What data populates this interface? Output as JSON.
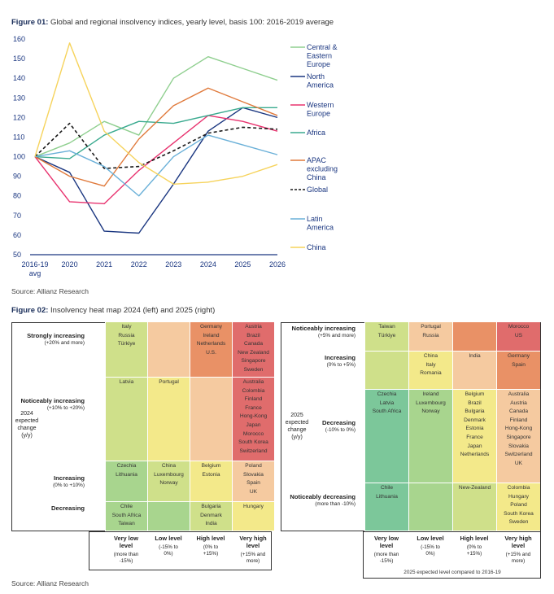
{
  "figure1": {
    "title_bold": "Figure 01:",
    "title_rest": " Global and regional insolvency indices, yearly level, basis 100: 2016-2019 average",
    "source": "Source: Allianz Research"
  },
  "chart_data": [
    {
      "type": "line",
      "categories": [
        "2016-19 avg",
        "2020",
        "2021",
        "2022",
        "2023",
        "2024",
        "2025",
        "2026"
      ],
      "ylim": [
        50,
        160
      ],
      "yticks": [
        50,
        60,
        70,
        80,
        90,
        100,
        110,
        120,
        130,
        140,
        150,
        160
      ],
      "grid": false,
      "legend_position": "right",
      "series": [
        {
          "name": "Central & Eastern Europe",
          "color": "#8fcf8f",
          "dash": "solid",
          "values": [
            100,
            107,
            118,
            111,
            140,
            151,
            145,
            139
          ]
        },
        {
          "name": "North America",
          "color": "#1a3680",
          "dash": "solid",
          "values": [
            100,
            92,
            62,
            61,
            86,
            113,
            125,
            120
          ]
        },
        {
          "name": "Western Europe",
          "color": "#e8336f",
          "dash": "solid",
          "values": [
            100,
            77,
            76,
            93,
            107,
            121,
            118,
            113
          ]
        },
        {
          "name": "Africa",
          "color": "#3aaa8f",
          "dash": "solid",
          "values": [
            100,
            99,
            111,
            118,
            117,
            121,
            125,
            125
          ]
        },
        {
          "name": "APAC excluding China",
          "color": "#e07a3c",
          "dash": "solid",
          "values": [
            100,
            90,
            85,
            109,
            126,
            135,
            128,
            121
          ]
        },
        {
          "name": "Global",
          "color": "#1a1a1a",
          "dash": "dashed",
          "values": [
            100,
            117,
            94,
            95,
            103,
            112,
            115,
            114
          ]
        },
        {
          "name": "Latin America",
          "color": "#6ab0d8",
          "dash": "solid",
          "values": [
            100,
            103,
            95,
            80,
            100,
            111,
            106,
            101
          ]
        },
        {
          "name": "China",
          "color": "#f6d35c",
          "dash": "solid",
          "values": [
            100,
            158,
            113,
            97,
            86,
            87,
            90,
            96
          ]
        }
      ]
    },
    {
      "type": "heatmap",
      "title": "2024 expected change (y/y)",
      "rows": [
        {
          "label": "Strongly increasing",
          "range": "(+20% and more)",
          "cells": [
            [
              "Italy",
              "Russia",
              "Türkiye"
            ],
            [],
            [
              "Germany",
              "Ireland",
              "Netherlands",
              "U.S."
            ],
            [
              "Austria",
              "Brazil",
              "Canada",
              "New Zealand",
              "Singapore",
              "Sweden"
            ]
          ]
        },
        {
          "label": "Noticeably increasing",
          "range": "(+10% to +20%)",
          "cells": [
            [
              "Latvia"
            ],
            [
              "Portugal"
            ],
            [],
            [
              "Australia",
              "Colombia",
              "Finland",
              "France",
              "Hong-Kong",
              "Japan",
              "Morocco",
              "South Korea",
              "Switzerland"
            ]
          ]
        },
        {
          "label": "Increasing",
          "range": "(0% to +10%)",
          "cells": [
            [
              "Czechia",
              "Lithuania"
            ],
            [
              "China",
              "Luxembourg",
              "Norway"
            ],
            [
              "Belgium",
              "Estonia"
            ],
            [
              "Poland",
              "Slovakia",
              "Spain",
              "UK"
            ]
          ]
        },
        {
          "label": "Decreasing",
          "range": "",
          "cells": [
            [
              "Chile",
              "South Africa",
              "Taiwan"
            ],
            [],
            [
              "Bulgaria",
              "Denmark",
              "India"
            ],
            [
              "Hungary"
            ]
          ]
        }
      ],
      "columns": [
        {
          "label": "Very low level",
          "range": "(more than -15%)"
        },
        {
          "label": "Low level",
          "range": "(-15% to 0%)"
        },
        {
          "label": "High level",
          "range": "(0% to +15%)"
        },
        {
          "label": "Very high level",
          "range": "(+15% and more)"
        }
      ],
      "side_label": "2024 expected change (y/y)"
    },
    {
      "type": "heatmap",
      "title": "2025 expected change (y/y)",
      "rows": [
        {
          "label": "Noticeably increasing",
          "range": "(+5% and more)",
          "cells": [
            [
              "Taiwan",
              "Türkiye"
            ],
            [
              "Portugal",
              "Russia"
            ],
            [],
            [
              "Morocco",
              "US"
            ]
          ]
        },
        {
          "label": "Increasing",
          "range": "(0% to +5%)",
          "cells": [
            [],
            [
              "China",
              "Italy",
              "Romania"
            ],
            [
              "India"
            ],
            [
              "Germany",
              "Spain"
            ]
          ]
        },
        {
          "label": "Decreasing",
          "range": "(-10% to 0%)",
          "cells": [
            [
              "Czechia",
              "Latvia",
              "South Africa"
            ],
            [
              "Ireland",
              "Luxembourg",
              "Norway"
            ],
            [
              "Belgium",
              "Brazil",
              "Bulgaria",
              "Denmark",
              "Estonia",
              "France",
              "Japan",
              "Netherlands"
            ],
            [
              "Australia",
              "Austria",
              "Canada",
              "Finland",
              "Hong-Kong",
              "Singapore",
              "Slovakia",
              "Switzerland",
              "UK"
            ]
          ]
        },
        {
          "label": "Noticeably decreasing",
          "range": "(more than -10%)",
          "cells": [
            [
              "Chile",
              "Lithuania"
            ],
            [],
            [
              "New-Zealand"
            ],
            [
              "Colombia",
              "Hungary",
              "Poland",
              "South Korea",
              "Sweden"
            ]
          ]
        }
      ],
      "columns": [
        {
          "label": "Very low level",
          "range": "(more than -15%)"
        },
        {
          "label": "Low level",
          "range": "(-15% to 0%)"
        },
        {
          "label": "High level",
          "range": "(0% to +15%)"
        },
        {
          "label": "Very high level",
          "range": "(+15% and more)"
        }
      ],
      "side_label": "2025 expected change (y/y)",
      "footer": "2025 expected level compared to 2016-19"
    }
  ],
  "figure2": {
    "title_bold": "Figure 02:",
    "title_rest": " Insolvency heat map 2024 (left) and 2025 (right)",
    "source": "Source: Allianz Research"
  },
  "colors": {
    "green_dark": "#7cc79a",
    "green_mid": "#a8d58e",
    "green_light": "#cfe08a",
    "yellow": "#f3e98a",
    "peach": "#f5caa0",
    "orange": "#e99166",
    "red": "#e06c6c"
  }
}
